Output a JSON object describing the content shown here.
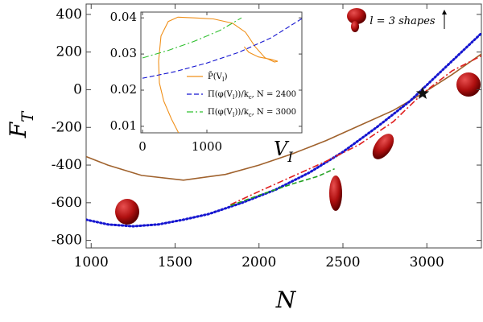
{
  "chart_data": [
    {
      "type": "line",
      "xlabel": "N",
      "ylabel": "F_T",
      "annotation": "l = 3 shapes",
      "xlim": [
        970,
        3325
      ],
      "ylim": [
        -840,
        455
      ],
      "xticks": [
        1000,
        1500,
        2000,
        2500,
        3000
      ],
      "yticks": [
        -800,
        -600,
        -400,
        -200,
        0,
        200,
        400
      ],
      "series": [
        {
          "color": "#a0622d",
          "style": "solid",
          "x": [
            970,
            1100,
            1300,
            1550,
            1800,
            2000,
            2200,
            2400,
            2600,
            2800,
            2975,
            3150,
            3325
          ],
          "values": [
            -355,
            -400,
            -455,
            -480,
            -450,
            -400,
            -340,
            -270,
            -190,
            -110,
            -20,
            80,
            190
          ]
        },
        {
          "color": "#1515d0",
          "style": "dotted",
          "x": [
            970,
            1100,
            1250,
            1400,
            1550,
            1700,
            1900,
            2100,
            2300,
            2500,
            2700,
            2900,
            3100,
            3325
          ],
          "values": [
            -690,
            -715,
            -725,
            -715,
            -690,
            -660,
            -600,
            -530,
            -440,
            -330,
            -200,
            -60,
            110,
            300
          ]
        },
        {
          "color": "#e02020",
          "style": "dashdot",
          "x": [
            1830,
            2000,
            2200,
            2400,
            2600,
            2800,
            2975,
            3150,
            3325
          ],
          "values": [
            -610,
            -540,
            -460,
            -380,
            -290,
            -170,
            -20,
            100,
            180
          ]
        },
        {
          "color": "#20a020",
          "style": "dashed",
          "x": [
            1830,
            2000,
            2200,
            2350,
            2450
          ],
          "values": [
            -615,
            -560,
            -500,
            -460,
            -420
          ]
        }
      ],
      "star": {
        "x": 2975,
        "y": -20
      }
    },
    {
      "type": "line",
      "xlabel": "V_I",
      "xlim": [
        -25,
        2475
      ],
      "ylim": [
        0.0082,
        0.0416
      ],
      "xticks": [
        0,
        1000
      ],
      "yticks": [
        0.01,
        0.02,
        0.03,
        0.04
      ],
      "series": [
        {
          "name": "P̄(V_I)",
          "color": "#f0901a",
          "style": "solid",
          "x": [
            560,
            450,
            330,
            262,
            250,
            287,
            400,
            550,
            800,
            1100,
            1400,
            1600,
            1750,
            1900,
            2050,
            2100,
            2000,
            1800,
            1650,
            1580
          ],
          "values": [
            0.0082,
            0.012,
            0.017,
            0.022,
            0.028,
            0.035,
            0.039,
            0.0402,
            0.04,
            0.0397,
            0.0385,
            0.036,
            0.032,
            0.029,
            0.0278,
            0.028,
            0.0285,
            0.0292,
            0.0305,
            0.032
          ]
        },
        {
          "name": "Π(φ(V_I))/k_c, N = 2400",
          "color": "#1515d0",
          "style": "dashed",
          "x": [
            0,
            500,
            1000,
            1500,
            2000,
            2475
          ],
          "values": [
            0.0233,
            0.0251,
            0.0275,
            0.0305,
            0.0345,
            0.0398
          ]
        },
        {
          "name": "Π(φ(V_I))/k_c, N = 3000",
          "color": "#30c030",
          "style": "dashdot",
          "x": [
            0,
            400,
            800,
            1200,
            1537
          ],
          "values": [
            0.0289,
            0.031,
            0.0335,
            0.0365,
            0.04
          ]
        }
      ]
    }
  ]
}
